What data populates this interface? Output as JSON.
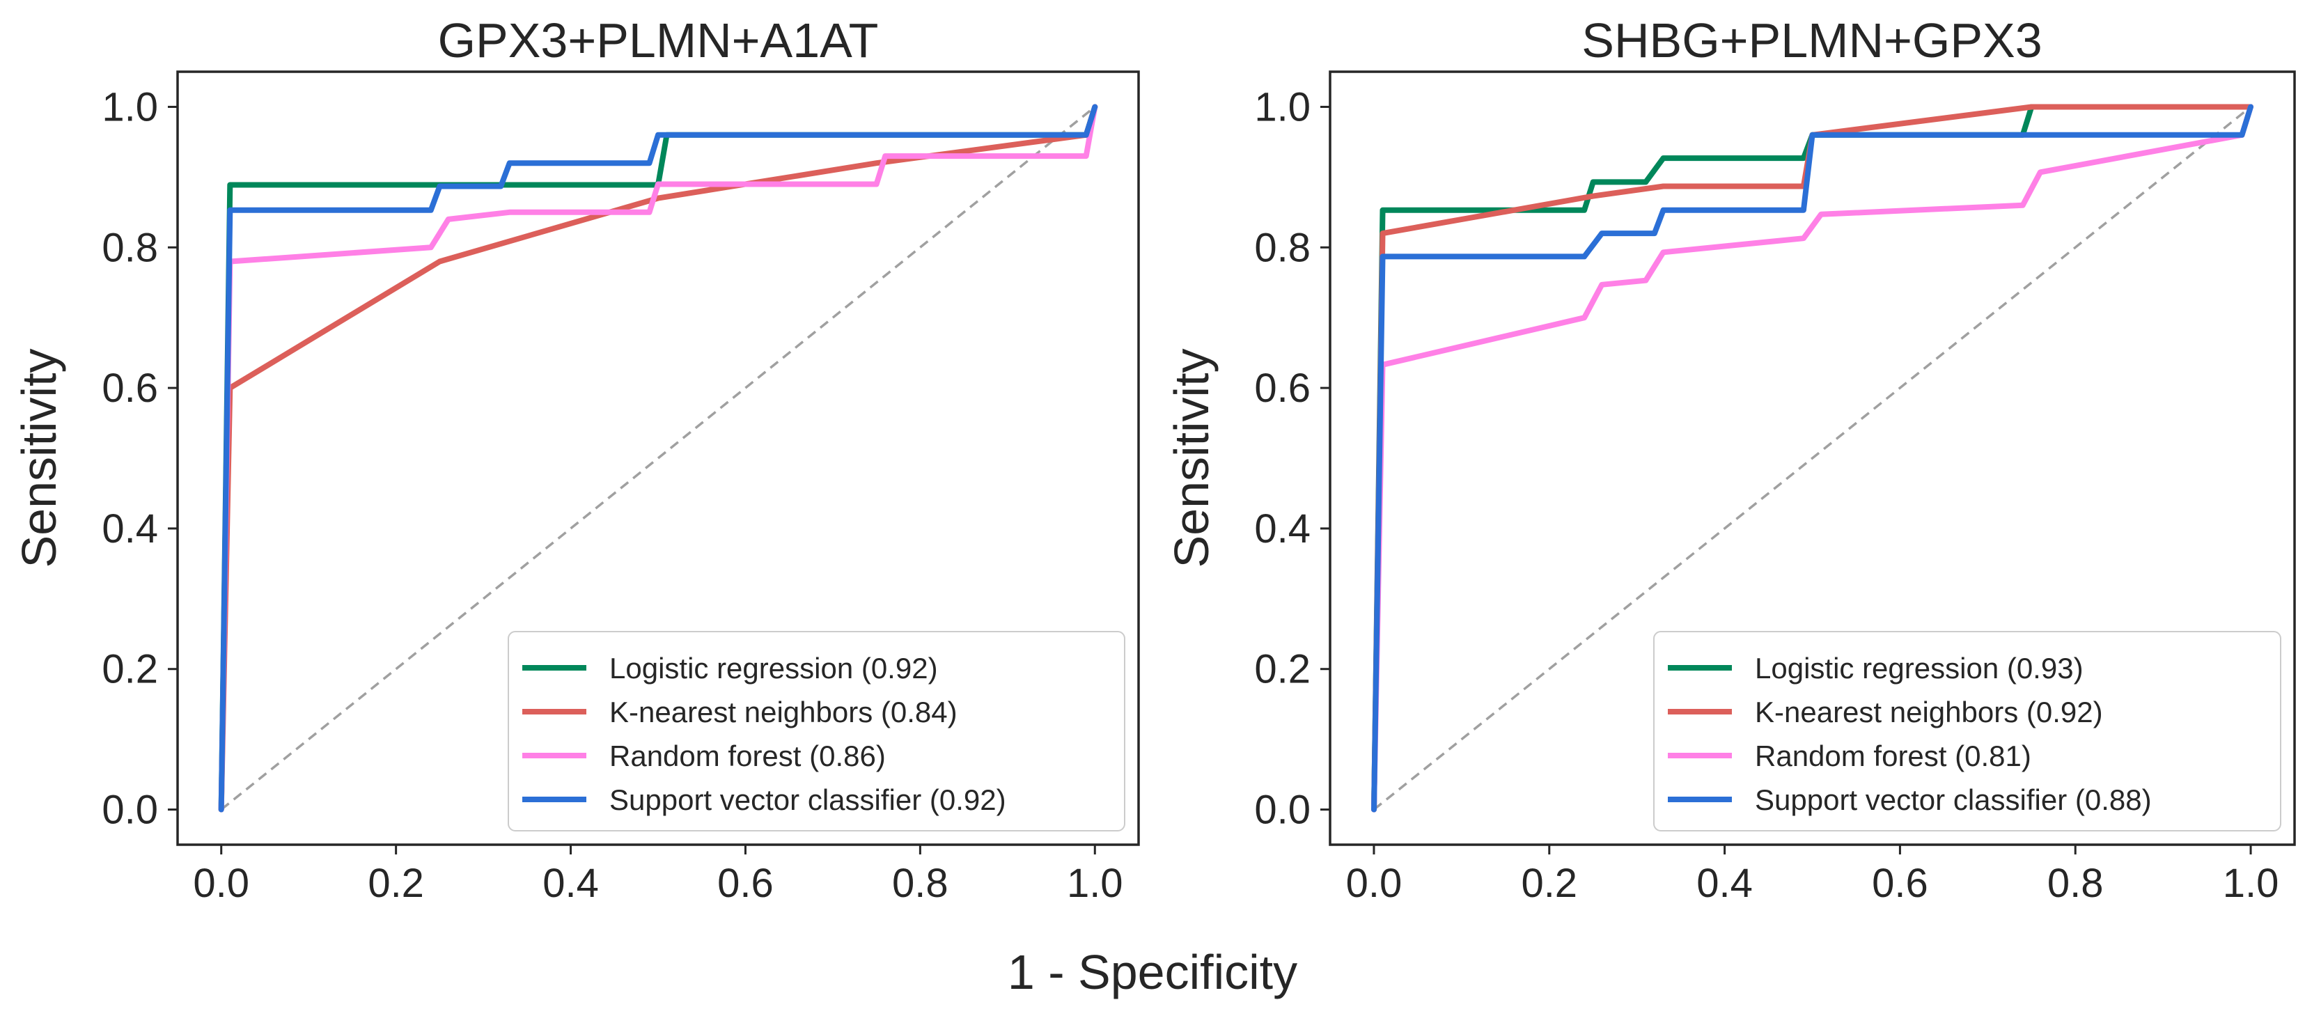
{
  "figure": {
    "shared_xlabel": "1 - Specificity"
  },
  "colors": {
    "logistic": "#00875a",
    "knn": "#dc5f5a",
    "rf": "#ff80e6",
    "svc": "#2b6fd6",
    "chance": "#a0a0a0"
  },
  "chart_data": [
    {
      "type": "line",
      "title": "GPX3+PLMN+A1AT",
      "xlabel": "1 - Specificity",
      "ylabel": "Sensitivity",
      "xlim": [
        -0.05,
        1.05
      ],
      "ylim": [
        -0.05,
        1.05
      ],
      "xticks": [
        "0.0",
        "0.2",
        "0.4",
        "0.6",
        "0.8",
        "1.0"
      ],
      "yticks": [
        "0.0",
        "0.2",
        "0.4",
        "0.6",
        "0.8",
        "1.0"
      ],
      "grid": false,
      "legend_position": "bottom-right",
      "chance_line": true,
      "series": [
        {
          "key": "logistic",
          "name": "Logistic regression (0.92)",
          "x": [
            0,
            0.01,
            0.01,
            0.25,
            0.26,
            0.33,
            0.34,
            0.5,
            0.51,
            0.75,
            0.76,
            0.99,
            1.0
          ],
          "y": [
            0,
            0.889,
            0.889,
            0.889,
            0.889,
            0.889,
            0.889,
            0.889,
            0.96,
            0.96,
            0.96,
            0.96,
            1.0
          ]
        },
        {
          "key": "knn",
          "name": "K-nearest neighbors (0.84)",
          "x": [
            0,
            0.01,
            0.25,
            0.5,
            0.75,
            0.99,
            1.0
          ],
          "y": [
            0,
            0.6,
            0.78,
            0.87,
            0.92,
            0.96,
            1.0
          ]
        },
        {
          "key": "rf",
          "name": "Random forest (0.86)",
          "x": [
            0,
            0.01,
            0.24,
            0.26,
            0.33,
            0.49,
            0.5,
            0.75,
            0.76,
            0.99,
            1.0
          ],
          "y": [
            0,
            0.78,
            0.8,
            0.84,
            0.85,
            0.85,
            0.89,
            0.89,
            0.93,
            0.93,
            1.0
          ]
        },
        {
          "key": "svc",
          "name": "Support vector classifier (0.92)",
          "x": [
            0,
            0.01,
            0.01,
            0.24,
            0.25,
            0.32,
            0.33,
            0.49,
            0.5,
            0.99,
            1.0
          ],
          "y": [
            0,
            0.853,
            0.853,
            0.853,
            0.887,
            0.887,
            0.92,
            0.92,
            0.96,
            0.96,
            1.0
          ]
        }
      ]
    },
    {
      "type": "line",
      "title": "SHBG+PLMN+GPX3",
      "xlabel": "1 - Specificity",
      "ylabel": "Sensitivity",
      "xlim": [
        -0.05,
        1.05
      ],
      "ylim": [
        -0.05,
        1.05
      ],
      "xticks": [
        "0.0",
        "0.2",
        "0.4",
        "0.6",
        "0.8",
        "1.0"
      ],
      "yticks": [
        "0.0",
        "0.2",
        "0.4",
        "0.6",
        "0.8",
        "1.0"
      ],
      "grid": false,
      "legend_position": "bottom-right",
      "chance_line": true,
      "series": [
        {
          "key": "logistic",
          "name": "Logistic regression (0.93)",
          "x": [
            0,
            0.01,
            0.24,
            0.25,
            0.31,
            0.33,
            0.49,
            0.5,
            0.74,
            0.75,
            0.99,
            1.0
          ],
          "y": [
            0,
            0.853,
            0.853,
            0.893,
            0.893,
            0.927,
            0.927,
            0.96,
            0.96,
            1.0,
            1.0,
            1.0
          ]
        },
        {
          "key": "knn",
          "name": "K-nearest neighbors (0.92)",
          "x": [
            0,
            0.01,
            0.25,
            0.33,
            0.49,
            0.5,
            0.75,
            1.0
          ],
          "y": [
            0,
            0.82,
            0.873,
            0.887,
            0.887,
            0.96,
            1.0,
            1.0
          ]
        },
        {
          "key": "rf",
          "name": "Random forest (0.81)",
          "x": [
            0,
            0.01,
            0.24,
            0.26,
            0.31,
            0.33,
            0.49,
            0.51,
            0.74,
            0.76,
            0.99,
            1.0
          ],
          "y": [
            0,
            0.633,
            0.7,
            0.747,
            0.753,
            0.793,
            0.813,
            0.847,
            0.86,
            0.907,
            0.96,
            1.0
          ]
        },
        {
          "key": "svc",
          "name": "Support vector classifier (0.88)",
          "x": [
            0,
            0.01,
            0.24,
            0.26,
            0.32,
            0.33,
            0.49,
            0.5,
            0.99,
            1.0
          ],
          "y": [
            0,
            0.787,
            0.787,
            0.82,
            0.82,
            0.853,
            0.853,
            0.96,
            0.96,
            1.0
          ]
        }
      ]
    }
  ]
}
